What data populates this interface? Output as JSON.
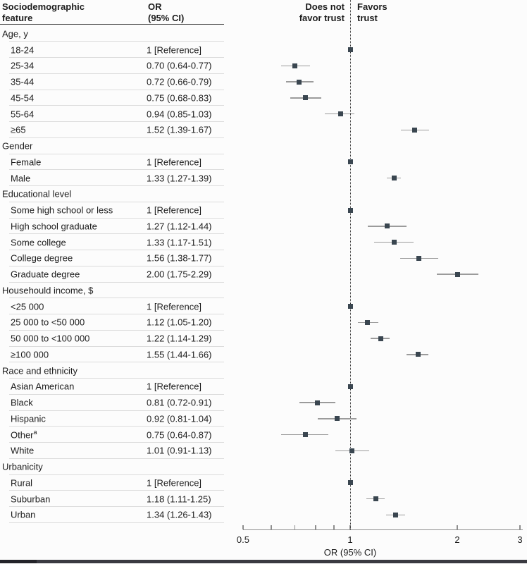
{
  "table": {
    "header": {
      "feature_label": "Sociodemographic\nfeature",
      "or_label": "OR\n(95% CI)"
    }
  },
  "plot": {
    "header_left": "Does not\nfavor trust",
    "header_right": "Favors\ntrust"
  },
  "colors": {
    "marker": "#3a4650",
    "ci_line": "#9b9b9b",
    "text": "#1d1d1d",
    "header_rule": "#4a4a4a",
    "row_separator": "#dcdcdc",
    "axis": "#8e8e8e",
    "reference_dotted_line": "#2f2f2f"
  },
  "chart_data": {
    "type": "forest",
    "x_scale": "log",
    "xlabel": "OR (95% CI)",
    "xlim": [
      0.5,
      3
    ],
    "x_ticks": [
      0.5,
      1,
      2,
      3
    ],
    "x_minor_ticks": [
      0.6,
      0.7,
      0.8,
      0.9
    ],
    "reference_line": 1,
    "left_region_label": "Does not favor trust",
    "right_region_label": "Favors trust",
    "groups": [
      {
        "label": "Age, y",
        "items": [
          {
            "label": "18-24",
            "display": "1 [Reference]",
            "or": 1,
            "ref": true
          },
          {
            "label": "25-34",
            "display": "0.70 (0.64-0.77)",
            "or": 0.7,
            "lo": 0.64,
            "hi": 0.77
          },
          {
            "label": "35-44",
            "display": "0.72 (0.66-0.79)",
            "or": 0.72,
            "lo": 0.66,
            "hi": 0.79
          },
          {
            "label": "45-54",
            "display": "0.75 (0.68-0.83)",
            "or": 0.75,
            "lo": 0.68,
            "hi": 0.83
          },
          {
            "label": "55-64",
            "display": "0.94 (0.85-1.03)",
            "or": 0.94,
            "lo": 0.85,
            "hi": 1.03
          },
          {
            "label": "≥65",
            "display": "1.52 (1.39-1.67)",
            "or": 1.52,
            "lo": 1.39,
            "hi": 1.67
          }
        ]
      },
      {
        "label": "Gender",
        "items": [
          {
            "label": "Female",
            "display": "1 [Reference]",
            "or": 1,
            "ref": true
          },
          {
            "label": "Male",
            "display": "1.33 (1.27-1.39)",
            "or": 1.33,
            "lo": 1.27,
            "hi": 1.39
          }
        ]
      },
      {
        "label": "Educational level",
        "items": [
          {
            "label": "Some high school or less",
            "display": "1 [Reference]",
            "or": 1,
            "ref": true
          },
          {
            "label": "High school graduate",
            "display": "1.27 (1.12-1.44)",
            "or": 1.27,
            "lo": 1.12,
            "hi": 1.44
          },
          {
            "label": "Some college",
            "display": "1.33 (1.17-1.51)",
            "or": 1.33,
            "lo": 1.17,
            "hi": 1.51
          },
          {
            "label": "College degree",
            "display": "1.56 (1.38-1.77)",
            "or": 1.56,
            "lo": 1.38,
            "hi": 1.77
          },
          {
            "label": "Graduate degree",
            "display": "2.00 (1.75-2.29)",
            "or": 2.0,
            "lo": 1.75,
            "hi": 2.29
          }
        ]
      },
      {
        "label": "Househould income, $",
        "items": [
          {
            "label": "<25 000",
            "display": "1 [Reference]",
            "or": 1,
            "ref": true
          },
          {
            "label": "25 000 to <50 000",
            "display": "1.12 (1.05-1.20)",
            "or": 1.12,
            "lo": 1.05,
            "hi": 1.2
          },
          {
            "label": "50 000 to <100 000",
            "display": "1.22 (1.14-1.29)",
            "or": 1.22,
            "lo": 1.14,
            "hi": 1.29
          },
          {
            "label": "≥100 000",
            "display": "1.55 (1.44-1.66)",
            "or": 1.55,
            "lo": 1.44,
            "hi": 1.66
          }
        ]
      },
      {
        "label": "Race and ethnicity",
        "items": [
          {
            "label": "Asian American",
            "display": "1 [Reference]",
            "or": 1,
            "ref": true
          },
          {
            "label": "Black",
            "display": "0.81 (0.72-0.91)",
            "or": 0.81,
            "lo": 0.72,
            "hi": 0.91
          },
          {
            "label": "Hispanic",
            "display": "0.92 (0.81-1.04)",
            "or": 0.92,
            "lo": 0.81,
            "hi": 1.04
          },
          {
            "label": "Other",
            "sup": "a",
            "display": "0.75 (0.64-0.87)",
            "or": 0.75,
            "lo": 0.64,
            "hi": 0.87
          },
          {
            "label": "White",
            "display": "1.01 (0.91-1.13)",
            "or": 1.01,
            "lo": 0.91,
            "hi": 1.13
          }
        ]
      },
      {
        "label": "Urbanicity",
        "items": [
          {
            "label": "Rural",
            "display": "1 [Reference]",
            "or": 1,
            "ref": true
          },
          {
            "label": "Suburban",
            "display": "1.18 (1.11-1.25)",
            "or": 1.18,
            "lo": 1.11,
            "hi": 1.25
          },
          {
            "label": "Urban",
            "display": "1.34 (1.26-1.43)",
            "or": 1.34,
            "lo": 1.26,
            "hi": 1.43
          }
        ]
      }
    ]
  }
}
